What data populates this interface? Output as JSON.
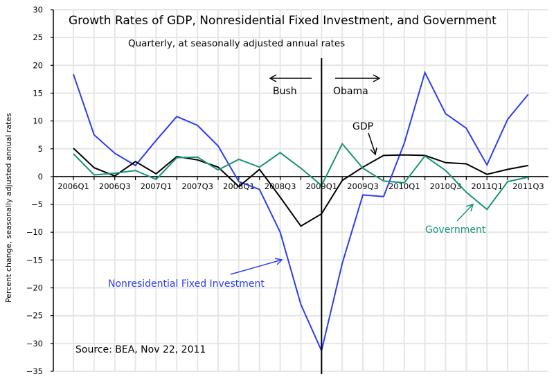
{
  "chart_data": {
    "type": "line",
    "title": "Growth Rates of GDP, Nonresidential Fixed Investment, and Government",
    "subtitle": "Quarterly, at seasonally adjusted annual rates",
    "xlabel": "",
    "ylabel": "Percent change, seasonally adjusted annual rates",
    "ylim": [
      -35,
      30
    ],
    "yticks": [
      30,
      25,
      20,
      15,
      10,
      5,
      0,
      -5,
      -10,
      -15,
      -20,
      -25,
      -30,
      -35
    ],
    "grid": true,
    "x": [
      "2006Q1",
      "2006Q2",
      "2006Q3",
      "2006Q4",
      "2007Q1",
      "2007Q2",
      "2007Q3",
      "2007Q4",
      "2008Q1",
      "2008Q2",
      "2008Q3",
      "2008Q4",
      "2009Q1",
      "2009Q2",
      "2009Q3",
      "2009Q4",
      "2010Q1",
      "2010Q2",
      "2010Q3",
      "2010Q4",
      "2011Q1",
      "2011Q2",
      "2011Q3"
    ],
    "xtick_labels": [
      "2006Q1",
      "2006Q3",
      "2007Q1",
      "2007Q3",
      "2008Q1",
      "2008Q3",
      "2009Q1",
      "2009Q3",
      "2010Q1",
      "2010Q3",
      "2011Q1",
      "2011Q3"
    ],
    "series": [
      {
        "name": "Nonresidential Fixed Investment",
        "color": "#2b3df0",
        "values": [
          18.4,
          7.5,
          4.2,
          2.0,
          6.5,
          10.8,
          9.2,
          5.5,
          -0.9,
          -2.3,
          -10.0,
          -23.0,
          -31.3,
          -15.6,
          -3.3,
          -3.6,
          6.0,
          18.7,
          11.3,
          8.7,
          2.1,
          10.3,
          14.8
        ]
      },
      {
        "name": "GDP",
        "color": "#000000",
        "values": [
          5.1,
          1.6,
          0.1,
          2.7,
          0.5,
          3.6,
          3.0,
          1.7,
          -1.8,
          1.3,
          -3.7,
          -8.9,
          -6.7,
          -0.7,
          1.7,
          3.8,
          3.9,
          3.8,
          2.5,
          2.3,
          0.4,
          1.3,
          2.0
        ]
      },
      {
        "name": "Government",
        "color": "#17937a",
        "values": [
          4.1,
          0.3,
          0.6,
          1.1,
          -0.5,
          3.4,
          3.5,
          1.2,
          3.1,
          1.7,
          4.3,
          1.5,
          -1.6,
          5.9,
          1.5,
          -0.8,
          -1.1,
          3.7,
          1.1,
          -2.8,
          -5.9,
          -0.9,
          -0.1
        ]
      }
    ],
    "divider": {
      "at": "2009Q1",
      "left_label": "Bush",
      "right_label": "Obama"
    },
    "annotations": {
      "gdp_label": "GDP",
      "investment_label": "Nonresidential Fixed Investment",
      "government_label": "Government",
      "source": "Source:  BEA, Nov 22, 2011"
    }
  }
}
